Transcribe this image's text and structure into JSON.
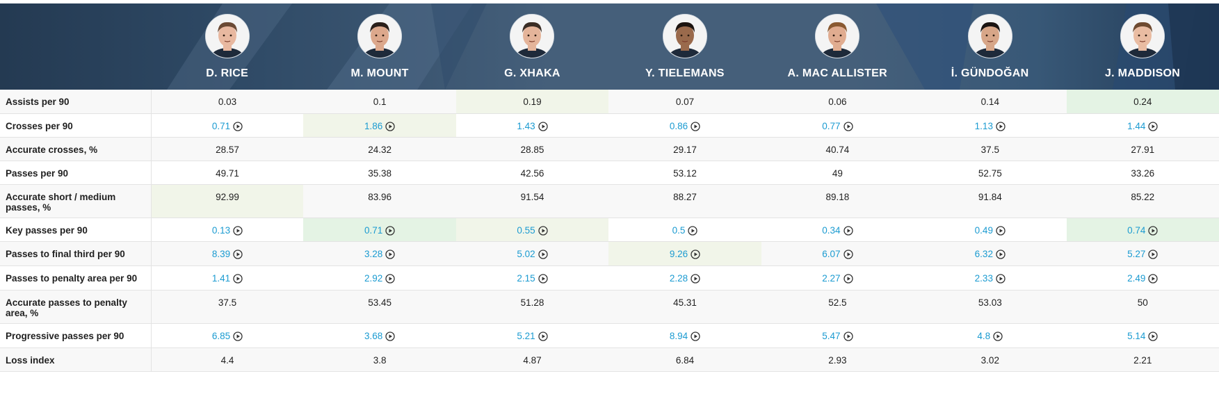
{
  "players": [
    {
      "name": "D. RICE",
      "avatar_icon": "player-photo"
    },
    {
      "name": "M. MOUNT",
      "avatar_icon": "player-photo"
    },
    {
      "name": "G. XHAKA",
      "avatar_icon": "player-photo"
    },
    {
      "name": "Y. TIELEMANS",
      "avatar_icon": "player-photo"
    },
    {
      "name": "A. MAC ALLISTER",
      "avatar_icon": "player-photo"
    },
    {
      "name": "İ. GÜNDOĞAN",
      "avatar_icon": "player-photo"
    },
    {
      "name": "J. MADDISON",
      "avatar_icon": "player-photo"
    }
  ],
  "colors": {
    "header_bg": "#455f7a",
    "link": "#1b9bd1",
    "highlight_light": "#f1f5e9",
    "highlight_strong": "#e4f3e4"
  },
  "rows": [
    {
      "label": "Assists per 90",
      "values": [
        "0.03",
        "0.1",
        "0.19",
        "0.07",
        "0.06",
        "0.14",
        "0.24"
      ],
      "video": false,
      "highlight": [
        null,
        null,
        "light",
        null,
        null,
        null,
        "strong"
      ]
    },
    {
      "label": "Crosses per 90",
      "values": [
        "0.71",
        "1.86",
        "1.43",
        "0.86",
        "0.77",
        "1.13",
        "1.44"
      ],
      "video": true,
      "highlight": [
        null,
        "light",
        null,
        null,
        null,
        null,
        null
      ]
    },
    {
      "label": "Accurate crosses, %",
      "values": [
        "28.57",
        "24.32",
        "28.85",
        "29.17",
        "40.74",
        "37.5",
        "27.91"
      ],
      "video": false,
      "highlight": [
        null,
        null,
        null,
        null,
        null,
        null,
        null
      ]
    },
    {
      "label": "Passes per 90",
      "values": [
        "49.71",
        "35.38",
        "42.56",
        "53.12",
        "49",
        "52.75",
        "33.26"
      ],
      "video": false,
      "highlight": [
        null,
        null,
        null,
        null,
        null,
        null,
        null
      ]
    },
    {
      "label": "Accurate short / medium passes, %",
      "values": [
        "92.99",
        "83.96",
        "91.54",
        "88.27",
        "89.18",
        "91.84",
        "85.22"
      ],
      "video": false,
      "highlight": [
        "light",
        null,
        null,
        null,
        null,
        null,
        null
      ]
    },
    {
      "label": "Key passes per 90",
      "values": [
        "0.13",
        "0.71",
        "0.55",
        "0.5",
        "0.34",
        "0.49",
        "0.74"
      ],
      "video": true,
      "highlight": [
        null,
        "strong",
        "light",
        null,
        null,
        null,
        "strong"
      ]
    },
    {
      "label": "Passes to final third per 90",
      "values": [
        "8.39",
        "3.28",
        "5.02",
        "9.26",
        "6.07",
        "6.32",
        "5.27"
      ],
      "video": true,
      "highlight": [
        null,
        null,
        null,
        "light",
        null,
        null,
        null
      ]
    },
    {
      "label": "Passes to penalty area per 90",
      "values": [
        "1.41",
        "2.92",
        "2.15",
        "2.28",
        "2.27",
        "2.33",
        "2.49"
      ],
      "video": true,
      "highlight": [
        null,
        null,
        null,
        null,
        null,
        null,
        null
      ]
    },
    {
      "label": "Accurate passes to penalty area, %",
      "values": [
        "37.5",
        "53.45",
        "51.28",
        "45.31",
        "52.5",
        "53.03",
        "50"
      ],
      "video": false,
      "highlight": [
        null,
        null,
        null,
        null,
        null,
        null,
        null
      ]
    },
    {
      "label": "Progressive passes per 90",
      "values": [
        "6.85",
        "3.68",
        "5.21",
        "8.94",
        "5.47",
        "4.8",
        "5.14"
      ],
      "video": true,
      "highlight": [
        null,
        null,
        null,
        null,
        null,
        null,
        null
      ]
    },
    {
      "label": "Loss index",
      "values": [
        "4.4",
        "3.8",
        "4.87",
        "6.84",
        "2.93",
        "3.02",
        "2.21"
      ],
      "video": false,
      "highlight": [
        null,
        null,
        null,
        null,
        null,
        null,
        null
      ]
    }
  ]
}
